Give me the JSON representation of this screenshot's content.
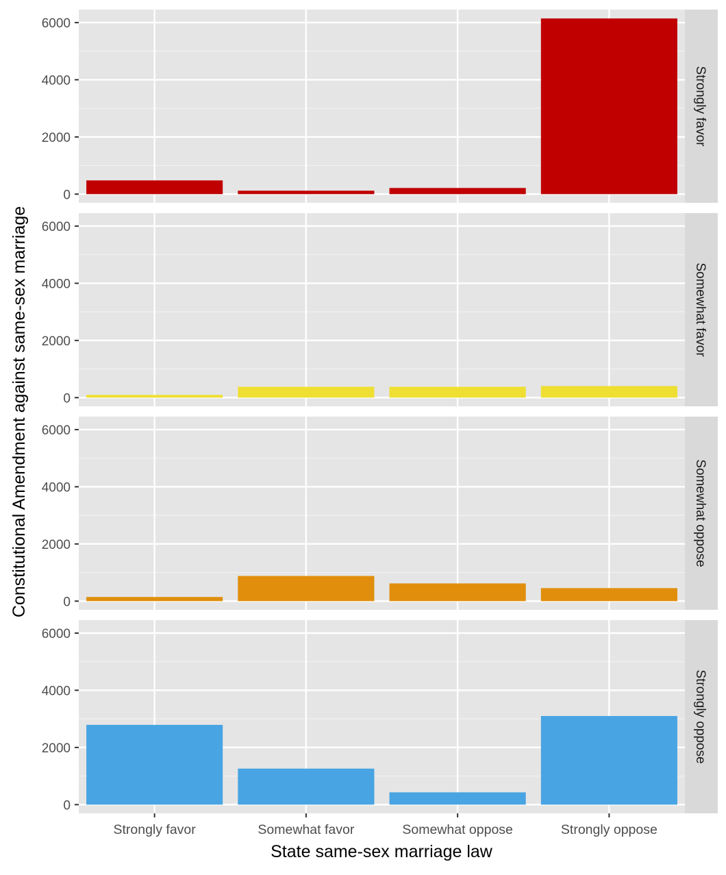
{
  "chart_data": {
    "type": "bar",
    "xlabel": "State same-sex marriage law",
    "ylabel": "Constitutional Amendment against same-sex marriage",
    "categories": [
      "Strongly favor",
      "Somewhat favor",
      "Somewhat oppose",
      "Strongly oppose"
    ],
    "ylim": [
      0,
      6150
    ],
    "yticks": [
      0,
      2000,
      4000,
      6000
    ],
    "grid": true,
    "facets": [
      {
        "name": "Strongly favor",
        "color": "#C00000",
        "values": [
          480,
          120,
          215,
          6145
        ]
      },
      {
        "name": "Somewhat favor",
        "color": "#EEDF32",
        "values": [
          95,
          380,
          380,
          405
        ]
      },
      {
        "name": "Somewhat oppose",
        "color": "#E08E0B",
        "values": [
          145,
          880,
          620,
          455
        ]
      },
      {
        "name": "Strongly oppose",
        "color": "#48A4E2",
        "values": [
          2790,
          1260,
          430,
          3100
        ]
      }
    ]
  }
}
